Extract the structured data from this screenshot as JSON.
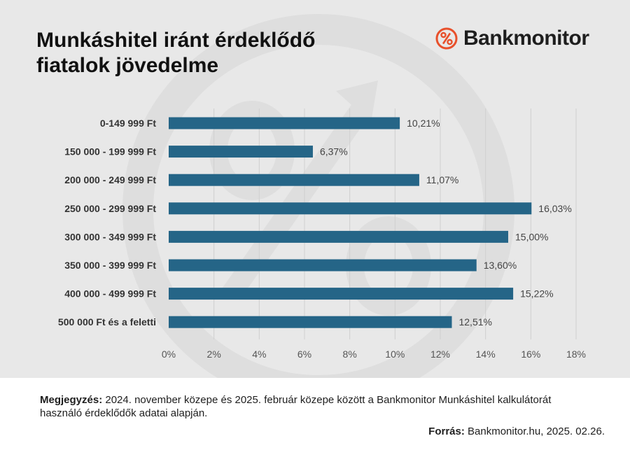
{
  "header": {
    "title_line1": "Munkáshitel iránt érdeklődő",
    "title_line2": "fiatalok jövedelme",
    "logo_text": "Bankmonitor",
    "logo_icon": "percent-circle-icon"
  },
  "colors": {
    "bar": "#256587",
    "background": "#e8e8e8",
    "brand": "#e8502b"
  },
  "chart_data": {
    "type": "bar",
    "orientation": "horizontal",
    "categories": [
      "0-149 999 Ft",
      "150 000 - 199 999 Ft",
      "200 000 - 249 999 Ft",
      "250 000 - 299 999 Ft",
      "300 000 - 349 999 Ft",
      "350 000 - 399 999 Ft",
      "400 000 - 499 999 Ft",
      "500 000 Ft és a feletti"
    ],
    "values": [
      10.21,
      6.37,
      11.07,
      16.03,
      15.0,
      13.6,
      15.22,
      12.51
    ],
    "value_labels": [
      "10,21%",
      "6,37%",
      "11,07%",
      "16,03%",
      "15,00%",
      "13,60%",
      "15,22%",
      "12,51%"
    ],
    "xlim": [
      0,
      18
    ],
    "x_ticks": [
      0,
      2,
      4,
      6,
      8,
      10,
      12,
      14,
      16,
      18
    ],
    "x_tick_labels": [
      "0%",
      "2%",
      "4%",
      "6%",
      "8%",
      "10%",
      "12%",
      "14%",
      "16%",
      "18%"
    ],
    "grid": "vertical"
  },
  "footer": {
    "note_label": "Megjegyzés:",
    "note_text": " 2024. november közepe és 2025. február közepe között a Bankmonitor Munkáshitel kalkulátorát használó érdeklődők adatai alapján.",
    "source_label": "Forrás:",
    "source_text": " Bankmonitor.hu, 2025. 02.26."
  }
}
